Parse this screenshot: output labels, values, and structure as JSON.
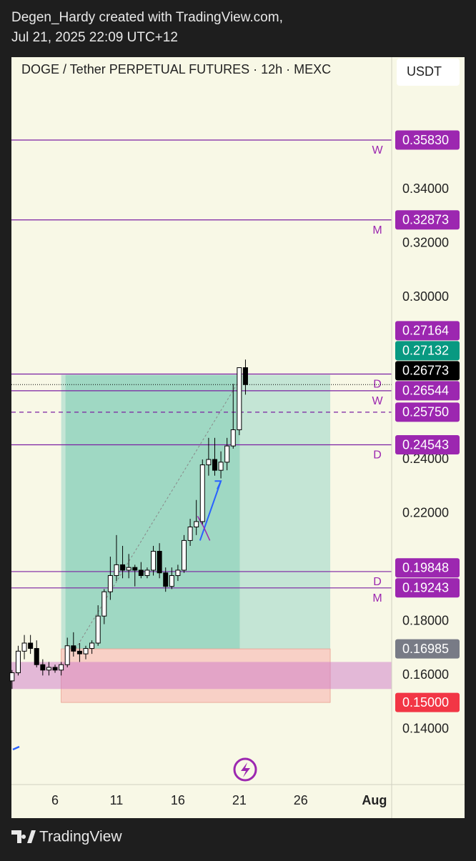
{
  "header": {
    "line1": "Degen_Hardy created with TradingView.com,",
    "line2": "Jul 21, 2025 22:09 UTC+12"
  },
  "footer": "TradingView",
  "chart_data": {
    "type": "candlestick",
    "title": "DOGE / Tether PERPETUAL FUTURES · 12h · MEXC",
    "currency": "USDT",
    "x": [
      2.5,
      3,
      3.5,
      4,
      4.5,
      5,
      5.5,
      6,
      6.5,
      7,
      7.5,
      8,
      8.5,
      9,
      9.5,
      10,
      10.5,
      11,
      11.5,
      12,
      12.5,
      13,
      13.5,
      14,
      14.5,
      15,
      15.5,
      16,
      16.5,
      17,
      17.5,
      18,
      18.5,
      19,
      19.5,
      20,
      20.5,
      21,
      21.5
    ],
    "open": [
      0.158,
      0.161,
      0.169,
      0.172,
      0.17,
      0.164,
      0.162,
      0.163,
      0.162,
      0.164,
      0.171,
      0.169,
      0.168,
      0.17,
      0.172,
      0.182,
      0.191,
      0.197,
      0.201,
      0.199,
      0.2,
      0.199,
      0.197,
      0.199,
      0.206,
      0.198,
      0.193,
      0.197,
      0.199,
      0.21,
      0.215,
      0.217,
      0.238,
      0.24,
      0.236,
      0.239,
      0.245,
      0.251,
      0.274
    ],
    "high": [
      0.162,
      0.171,
      0.175,
      0.175,
      0.173,
      0.166,
      0.165,
      0.164,
      0.165,
      0.174,
      0.176,
      0.172,
      0.171,
      0.173,
      0.186,
      0.192,
      0.204,
      0.212,
      0.208,
      0.205,
      0.201,
      0.202,
      0.2,
      0.208,
      0.209,
      0.2,
      0.2,
      0.201,
      0.212,
      0.218,
      0.225,
      0.24,
      0.248,
      0.248,
      0.243,
      0.248,
      0.268,
      0.274,
      0.277
    ],
    "low": [
      0.155,
      0.16,
      0.166,
      0.168,
      0.163,
      0.16,
      0.16,
      0.161,
      0.16,
      0.163,
      0.167,
      0.165,
      0.166,
      0.168,
      0.171,
      0.179,
      0.188,
      0.195,
      0.196,
      0.196,
      0.193,
      0.196,
      0.196,
      0.197,
      0.196,
      0.191,
      0.192,
      0.195,
      0.198,
      0.208,
      0.212,
      0.216,
      0.234,
      0.234,
      0.233,
      0.236,
      0.244,
      0.249,
      0.264
    ],
    "close": [
      0.161,
      0.169,
      0.172,
      0.17,
      0.164,
      0.162,
      0.163,
      0.162,
      0.164,
      0.171,
      0.169,
      0.168,
      0.17,
      0.172,
      0.182,
      0.191,
      0.197,
      0.201,
      0.199,
      0.2,
      0.199,
      0.197,
      0.199,
      0.206,
      0.198,
      0.193,
      0.197,
      0.199,
      0.21,
      0.215,
      0.217,
      0.238,
      0.24,
      0.236,
      0.239,
      0.245,
      0.251,
      0.274,
      0.26773
    ],
    "xlim": [
      2.45,
      33.4
    ],
    "ylim": [
      0.1196,
      0.389
    ],
    "xticks": [
      6,
      11,
      16,
      21,
      26,
      {
        "value": 32,
        "label": "Aug"
      }
    ],
    "yticks": [
      {
        "value": 0.34,
        "label": "0.34000"
      },
      {
        "value": 0.32,
        "label": "0.32000"
      },
      {
        "value": 0.3,
        "label": "0.30000"
      },
      {
        "value": 0.24,
        "label": "0.24000"
      },
      {
        "value": 0.22,
        "label": "0.22000"
      },
      {
        "value": 0.18,
        "label": "0.18000"
      },
      {
        "value": 0.16,
        "label": "0.16000"
      },
      {
        "value": 0.14,
        "label": "0.14000"
      }
    ],
    "zone": [
      0.155,
      0.165
    ],
    "position_tool_x": [
      6.5,
      28.4
    ],
    "levels": [
      {
        "value": 0.3583,
        "label": "0.35830",
        "letter": "W",
        "kind": "level",
        "color": "#9c27b0"
      },
      {
        "value": 0.32873,
        "label": "0.32873",
        "letter": "M",
        "kind": "level",
        "color": "#9c27b0"
      },
      {
        "value": 0.27164,
        "label": "0.27164",
        "letter": "D",
        "kind": "level",
        "color": "#9c27b0"
      },
      {
        "value": 0.27132,
        "label": "0.27132",
        "kind": "target",
        "color": "#089981"
      },
      {
        "value": 0.26773,
        "label": "0.26773",
        "kind": "last",
        "color": "#000000"
      },
      {
        "value": 0.26544,
        "label": "0.26544",
        "letter": "W",
        "kind": "level",
        "color": "#9c27b0"
      },
      {
        "value": 0.2575,
        "label": "0.25750",
        "kind": "dashed",
        "color": "#9c27b0"
      },
      {
        "value": 0.24543,
        "label": "0.24543",
        "letter": "D",
        "kind": "level",
        "color": "#9c27b0"
      },
      {
        "value": 0.19848,
        "label": "0.19848",
        "letter": "D",
        "kind": "level",
        "color": "#9c27b0"
      },
      {
        "value": 0.19243,
        "label": "0.19243",
        "letter": "M",
        "kind": "level",
        "color": "#9c27b0"
      },
      {
        "value": 0.16985,
        "label": "0.16985",
        "kind": "entry",
        "color": "#787b86"
      },
      {
        "value": 0.15,
        "label": "0.15000",
        "kind": "stop",
        "color": "#f23645"
      }
    ]
  }
}
